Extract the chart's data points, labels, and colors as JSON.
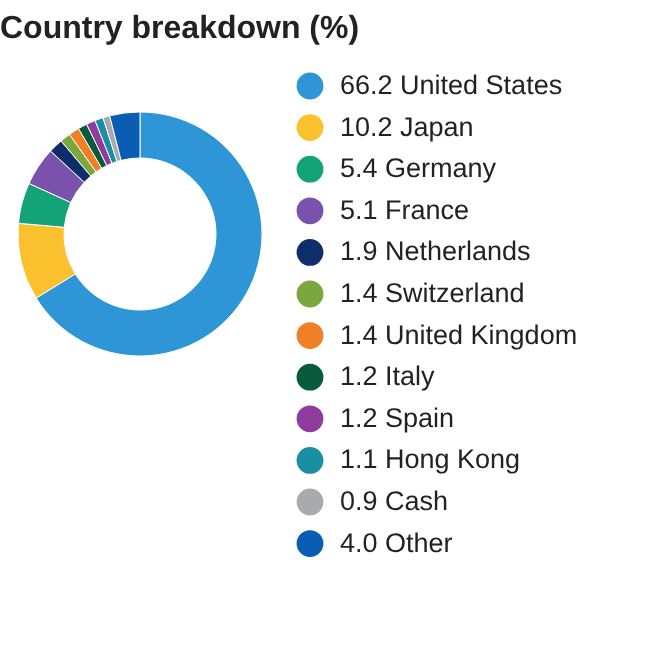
{
  "chart_data": {
    "type": "donut",
    "title": "Country breakdown (%)",
    "categories": [
      "United States",
      "Japan",
      "Germany",
      "France",
      "Netherlands",
      "Switzerland",
      "United Kingdom",
      "Italy",
      "Spain",
      "Hong Kong",
      "Cash",
      "Other"
    ],
    "values": [
      66.2,
      10.2,
      5.4,
      5.1,
      1.9,
      1.4,
      1.4,
      1.2,
      1.2,
      1.1,
      0.9,
      4.0
    ],
    "value_labels": [
      "66.2",
      "10.2",
      "5.4",
      "5.1",
      "1.9",
      "1.4",
      "1.4",
      "1.2",
      "1.2",
      "1.1",
      "0.9",
      "4.0"
    ],
    "colors": [
      "#2e95d6",
      "#fbc02d",
      "#14a277",
      "#7b52ab",
      "#0d2e6b",
      "#7ba83c",
      "#f07f26",
      "#0a5a3c",
      "#8e3d9e",
      "#1a8ea2",
      "#a8aaad",
      "#0b5db3"
    ],
    "legend": "right"
  }
}
